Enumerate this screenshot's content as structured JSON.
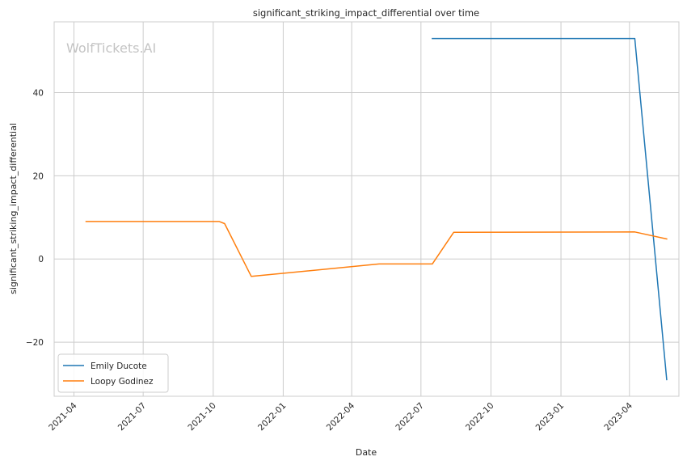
{
  "chart_data": {
    "type": "line",
    "title": "significant_striking_impact_differential over time",
    "xlabel": "Date",
    "ylabel": "significant_striking_impact_differential",
    "watermark": "WolfTickets.AI",
    "x_ticks": [
      "2021-04",
      "2021-07",
      "2021-10",
      "2022-01",
      "2022-04",
      "2022-07",
      "2022-10",
      "2023-01",
      "2023-04"
    ],
    "y_ticks": [
      -20,
      0,
      20,
      40
    ],
    "xlim": [
      "2021-03-06",
      "2023-06-05"
    ],
    "ylim": [
      -33,
      57
    ],
    "grid": true,
    "legend_position": "lower-left",
    "series": [
      {
        "name": "Emily Ducote",
        "color": "#1f77b4",
        "points": [
          {
            "x": "2022-07-16",
            "y": 53
          },
          {
            "x": "2023-04-08",
            "y": 53
          },
          {
            "x": "2023-05-20",
            "y": -29
          }
        ]
      },
      {
        "name": "Loopy Godinez",
        "color": "#ff7f0e",
        "points": [
          {
            "x": "2021-04-17",
            "y": 9.0
          },
          {
            "x": "2021-10-09",
            "y": 9.0
          },
          {
            "x": "2021-10-16",
            "y": 8.5
          },
          {
            "x": "2021-11-20",
            "y": -4.2
          },
          {
            "x": "2022-05-07",
            "y": -1.2
          },
          {
            "x": "2022-07-16",
            "y": -1.2
          },
          {
            "x": "2022-08-13",
            "y": 6.4
          },
          {
            "x": "2023-04-08",
            "y": 6.5
          },
          {
            "x": "2023-05-20",
            "y": 4.8
          }
        ]
      }
    ]
  }
}
